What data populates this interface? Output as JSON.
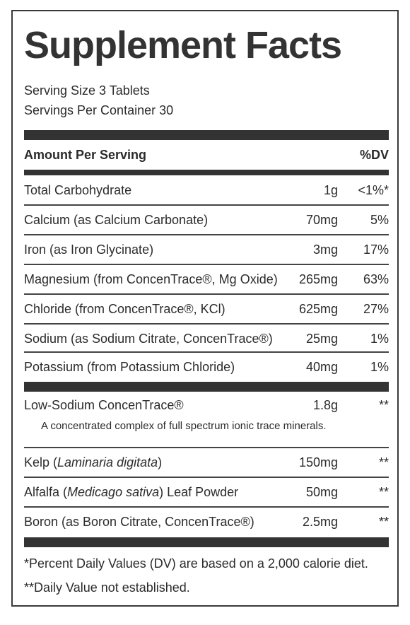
{
  "title": "Supplement Facts",
  "serving_size": "Serving Size 3 Tablets",
  "servings_per_container": "Servings Per Container 30",
  "header": {
    "amount_label": "Amount Per Serving",
    "dv_label": "%DV"
  },
  "rows_top": [
    {
      "name": "Total Carbohydrate",
      "amount": "1g",
      "dv": "<1%*"
    },
    {
      "name": "Calcium (as Calcium Carbonate)",
      "amount": "70mg",
      "dv": "5%"
    },
    {
      "name": "Iron (as Iron Glycinate)",
      "amount": "3mg",
      "dv": "17%"
    },
    {
      "name": "Magnesium (from ConcenTrace®, Mg Oxide)",
      "amount": "265mg",
      "dv": "63%"
    },
    {
      "name": "Chloride (from ConcenTrace®, KCl)",
      "amount": "625mg",
      "dv": "27%"
    },
    {
      "name": "Sodium (as Sodium Citrate, ConcenTrace®)",
      "amount": "25mg",
      "dv": "1%"
    },
    {
      "name": "Potassium (from Potassium Chloride)",
      "amount": "40mg",
      "dv": "1%"
    }
  ],
  "concentrace": {
    "name": "Low-Sodium ConcenTrace®",
    "amount": "1.8g",
    "dv": "**",
    "description": "A concentrated complex of full spectrum ionic trace minerals."
  },
  "kelp": {
    "name_prefix": "Kelp (",
    "name_italic": "Laminaria digitata",
    "name_suffix": ")",
    "amount": "150mg",
    "dv": "**"
  },
  "alfalfa": {
    "name_prefix": "Alfalfa (",
    "name_italic": "Medicago sativa",
    "name_suffix": ") Leaf Powder",
    "amount": "50mg",
    "dv": "**"
  },
  "boron": {
    "name": "Boron (as Boron Citrate, ConcenTrace®)",
    "amount": "2.5mg",
    "dv": "**"
  },
  "footnotes": {
    "dv_note": "*Percent Daily Values (DV) are based on a 2,000 calorie diet.",
    "not_established": "**Daily Value not established."
  }
}
